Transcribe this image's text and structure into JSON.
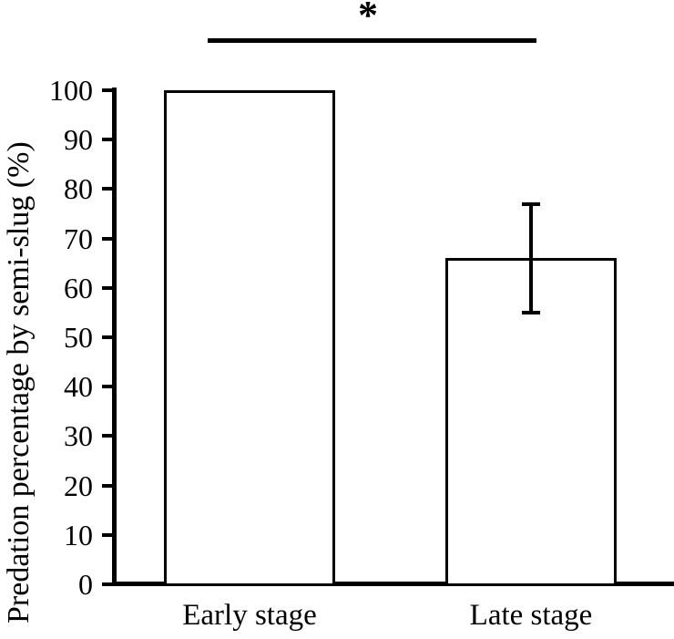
{
  "chart_data": {
    "type": "bar",
    "title": "",
    "xlabel": "",
    "ylabel": "Predation percentage by semi-slug (%)",
    "categories": [
      "Early stage",
      "Late stage"
    ],
    "values": [
      100,
      66
    ],
    "errors": [
      0,
      11
    ],
    "ylim": [
      0,
      100
    ],
    "yticks": [
      0,
      10,
      20,
      30,
      40,
      50,
      60,
      70,
      80,
      90,
      100
    ],
    "grid": false,
    "legend": false,
    "bar_fill": "#ffffff",
    "bar_stroke": "#000000",
    "axis_color": "#000000",
    "significance": {
      "label": "*",
      "between": [
        "Early stage",
        "Late stage"
      ]
    }
  }
}
